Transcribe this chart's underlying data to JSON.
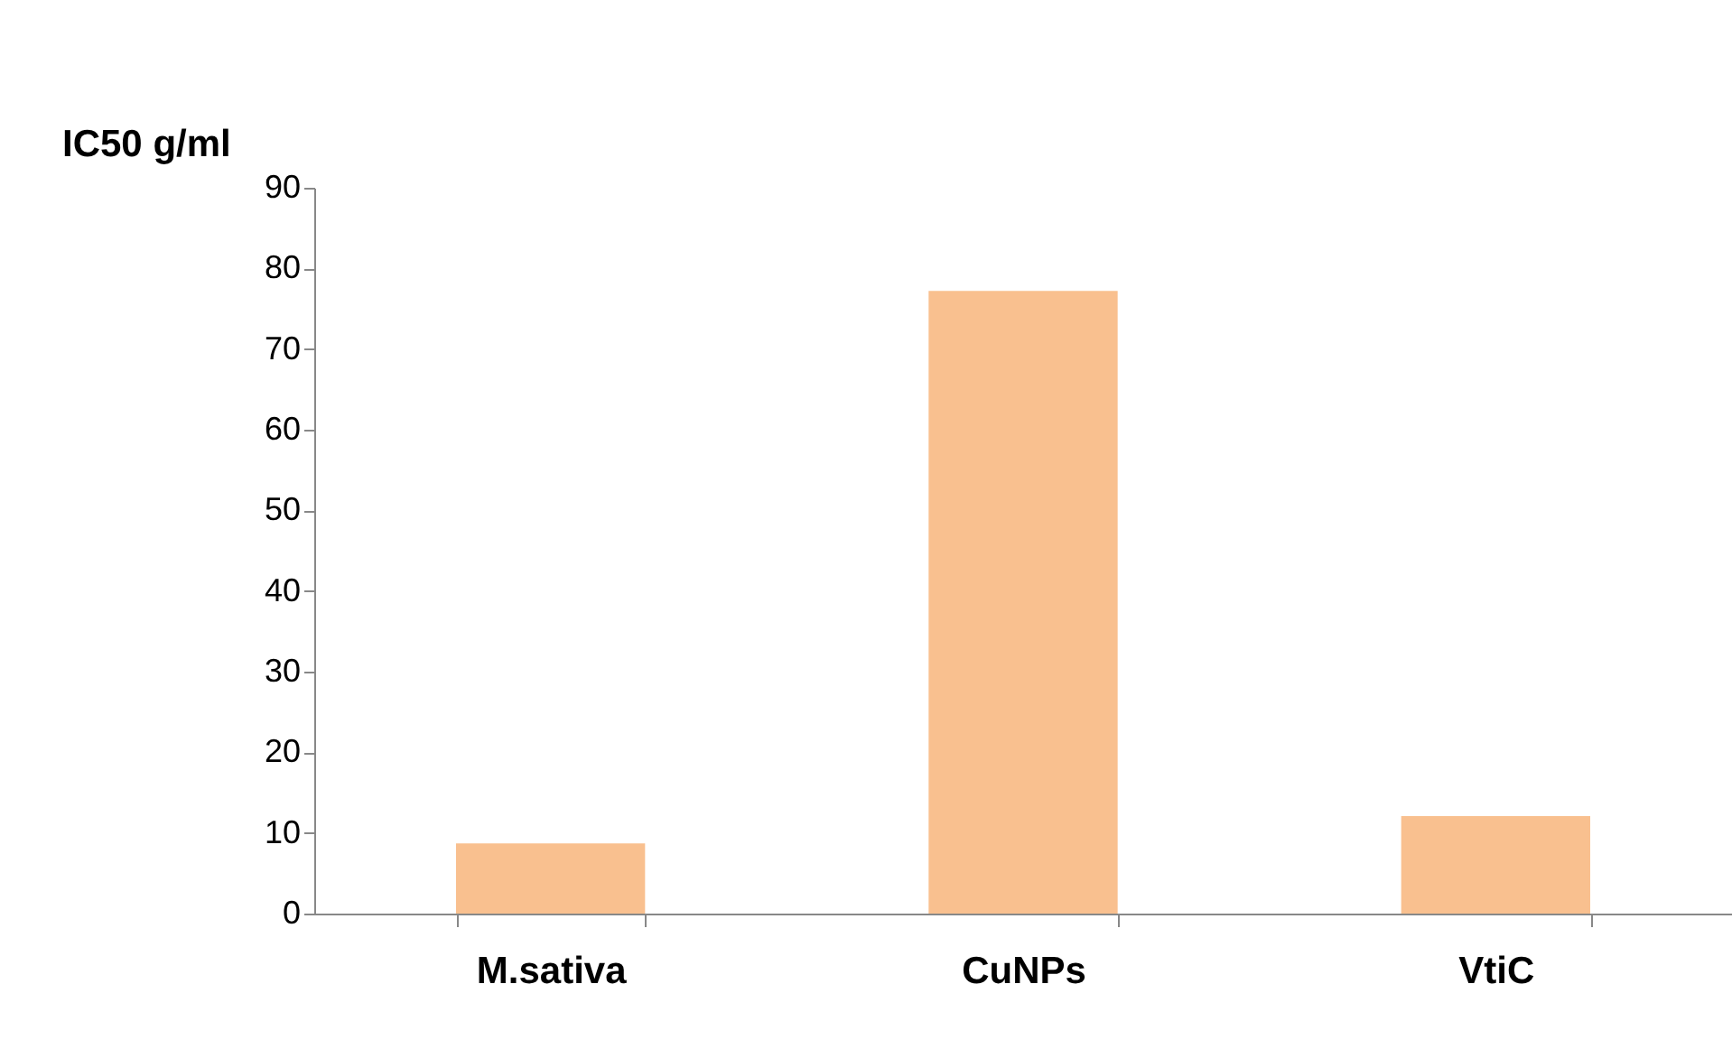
{
  "chart_data": {
    "type": "bar",
    "ylabel": "IC50 g/ml",
    "categories": [
      "M.sativa",
      "CuNPs",
      "VtiC"
    ],
    "values": [
      8.7,
      77.2,
      12.1
    ],
    "color": "#f9c08f",
    "ylim": [
      0,
      90
    ],
    "yticks": [
      0,
      10,
      20,
      30,
      40,
      50,
      60,
      70,
      80,
      90
    ],
    "grid": false
  }
}
